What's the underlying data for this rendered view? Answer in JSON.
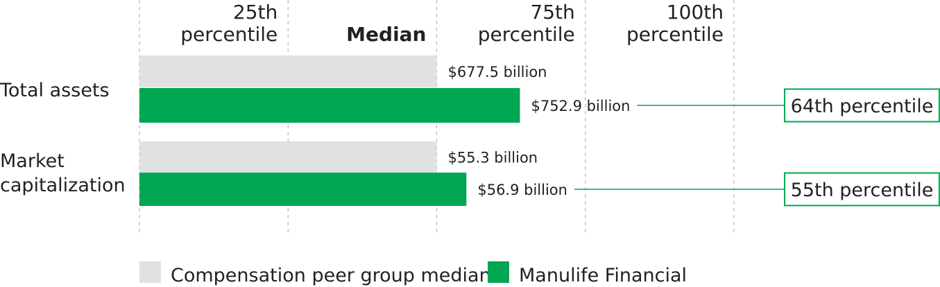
{
  "chart_data": {
    "type": "bar",
    "orientation": "horizontal",
    "axis_ticks": [
      {
        "value": 25,
        "lines": [
          "25th",
          "percentile"
        ],
        "bold": false
      },
      {
        "value": 50,
        "lines": [
          "",
          "Median"
        ],
        "bold": true
      },
      {
        "value": 75,
        "lines": [
          "75th",
          "percentile"
        ],
        "bold": false
      },
      {
        "value": 100,
        "lines": [
          "100th",
          "percentile"
        ],
        "bold": false
      }
    ],
    "xlim": [
      0,
      100
    ],
    "grid": true,
    "categories": [
      {
        "lines": [
          "Total assets"
        ]
      },
      {
        "lines": [
          "Market",
          "capitalization"
        ]
      }
    ],
    "series": [
      {
        "name": "Compensation peer group median",
        "color": "#e1e1e3",
        "values": [
          50,
          50
        ],
        "value_labels": [
          "$677.5 billion",
          "$55.3 billion"
        ]
      },
      {
        "name": "Manulife Financial",
        "color": "#00a651",
        "values": [
          64,
          55
        ],
        "value_labels": [
          "$752.9 billion",
          "$56.9 billion"
        ]
      }
    ],
    "percentile_callouts": [
      "64th percentile",
      "55th percentile"
    ],
    "legend_position": "bottom-left"
  }
}
